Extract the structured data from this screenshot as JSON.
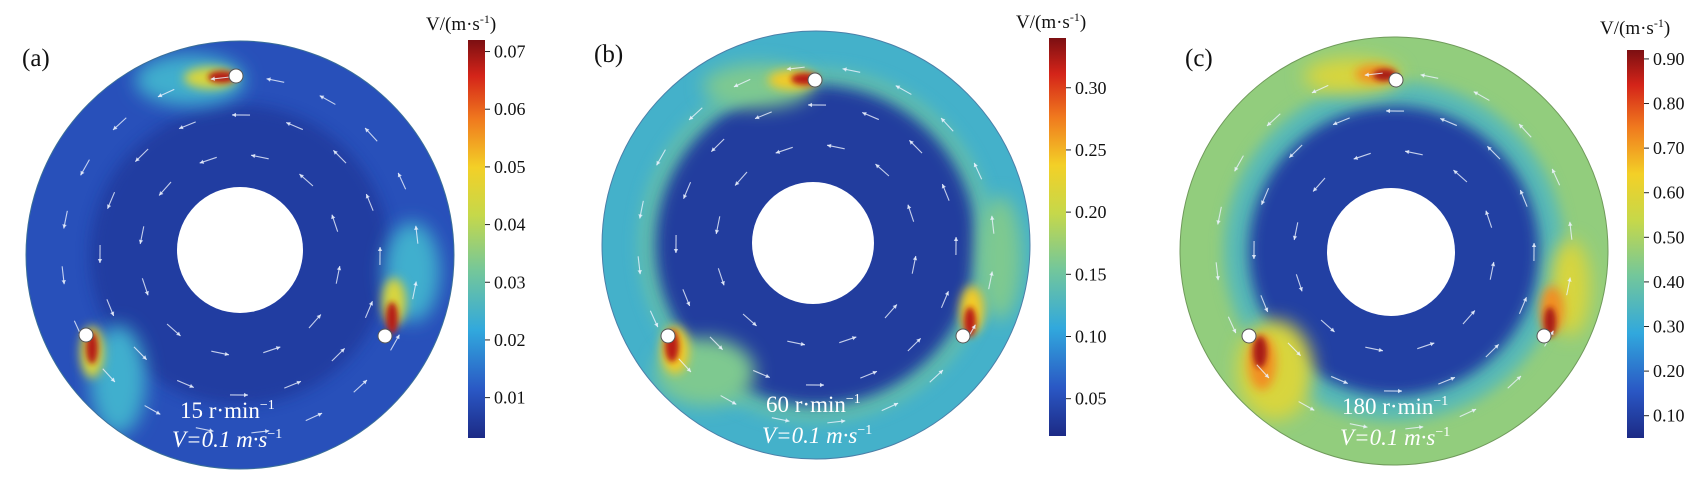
{
  "figure": {
    "panels": [
      {
        "label": "(a)",
        "speed": "15 r·min",
        "speed_exp": "−1",
        "ref_vector": "V=0.1 m·s",
        "ref_exp": "−1",
        "colorbar_title": "V/(m·s",
        "colorbar_title_exp": "-1",
        "colorbar_title_close": ")",
        "scale": {
          "min": 0.003,
          "max": 0.072
        },
        "ticks": [
          "0.01",
          "0.02",
          "0.03",
          "0.04",
          "0.05",
          "0.06",
          "0.07"
        ],
        "tick_values": [
          0.01,
          0.02,
          0.03,
          0.04,
          0.05,
          0.06,
          0.07
        ],
        "field": {
          "core": 0.004,
          "outer": 0.01,
          "band": 0.014,
          "bands": 0
        }
      },
      {
        "label": "(b)",
        "speed": "60 r·min",
        "speed_exp": "−1",
        "ref_vector": "V=0.1 m·s",
        "ref_exp": "−1",
        "colorbar_title": "V/(m·s",
        "colorbar_title_exp": "-1",
        "colorbar_title_close": ")",
        "scale": {
          "min": 0.02,
          "max": 0.34
        },
        "ticks": [
          "0.05",
          "0.10",
          "0.15",
          "0.20",
          "0.25",
          "0.30"
        ],
        "tick_values": [
          0.05,
          0.1,
          0.15,
          0.2,
          0.25,
          0.3
        ],
        "field": {
          "core": 0.035,
          "outer": 0.12,
          "band": 0.14,
          "bands": 1
        }
      },
      {
        "label": "(c)",
        "speed": "180 r·min",
        "speed_exp": "−1",
        "ref_vector": "V=0.1 m·s",
        "ref_exp": "−1",
        "colorbar_title": "V/(m·s",
        "colorbar_title_exp": "-1",
        "colorbar_title_close": ")",
        "scale": {
          "min": 0.05,
          "max": 0.92
        },
        "ticks": [
          "0.10",
          "0.20",
          "0.30",
          "0.40",
          "0.50",
          "0.60",
          "0.70",
          "0.80",
          "0.90"
        ],
        "tick_values": [
          0.1,
          0.2,
          0.3,
          0.4,
          0.5,
          0.6,
          0.7,
          0.8,
          0.9
        ],
        "field": {
          "core": 0.1,
          "outer": 0.46,
          "band": 0.36,
          "bands": 2
        }
      }
    ]
  },
  "chart_data": [
    {
      "type": "heatmap",
      "title": "(a)",
      "annotations": [
        "15 r·min−1",
        "V=0.1 m·s−1"
      ],
      "colorbar_label": "V/(m·s-1)",
      "colorbar_range": [
        0.003,
        0.072
      ],
      "colorbar_ticks": [
        0.01,
        0.02,
        0.03,
        0.04,
        0.05,
        0.06,
        0.07
      ],
      "peak_value_approx": 0.07,
      "background_value_approx": 0.01
    },
    {
      "type": "heatmap",
      "title": "(b)",
      "annotations": [
        "60 r·min−1",
        "V=0.1 m·s−1"
      ],
      "colorbar_label": "V/(m·s-1)",
      "colorbar_range": [
        0.02,
        0.34
      ],
      "colorbar_ticks": [
        0.05,
        0.1,
        0.15,
        0.2,
        0.25,
        0.3
      ],
      "peak_value_approx": 0.33,
      "outer_ring_value_approx": 0.12,
      "inner_region_value_approx": 0.035
    },
    {
      "type": "heatmap",
      "title": "(c)",
      "annotations": [
        "180 r·min−1",
        "V=0.1 m·s−1"
      ],
      "colorbar_label": "V/(m·s-1)",
      "colorbar_range": [
        0.05,
        0.92
      ],
      "colorbar_ticks": [
        0.1,
        0.2,
        0.3,
        0.4,
        0.5,
        0.6,
        0.7,
        0.8,
        0.9
      ],
      "peak_value_approx": 0.9,
      "outer_ring_value_approx": 0.46,
      "inner_region_value_approx": 0.1
    }
  ]
}
